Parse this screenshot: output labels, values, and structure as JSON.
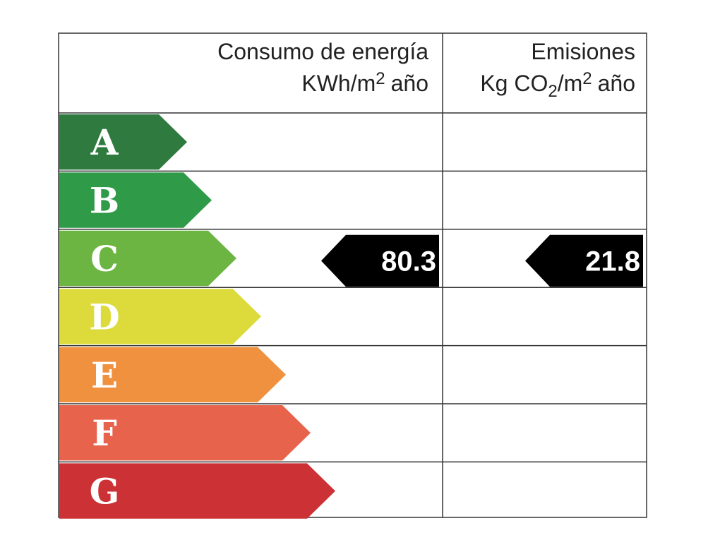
{
  "header": {
    "consumption": {
      "title": "Consumo de energía",
      "unit": "KWh/m",
      "unit_sup": "2",
      "unit_end": "año"
    },
    "emissions": {
      "title": "Emisiones",
      "unit": "Kg CO",
      "unit_sub": "2",
      "unit_mid": "/m",
      "unit_sup": "2",
      "unit_end": "año"
    }
  },
  "ratings": [
    {
      "letter": "A",
      "color": "#2e7a3f"
    },
    {
      "letter": "B",
      "color": "#2f9a48"
    },
    {
      "letter": "C",
      "color": "#6cb543",
      "consumption": 80.3,
      "emissions": 21.8
    },
    {
      "letter": "D",
      "color": "#dcdb3b"
    },
    {
      "letter": "E",
      "color": "#f0913f"
    },
    {
      "letter": "F",
      "color": "#e8634b"
    },
    {
      "letter": "G",
      "color": "#cc3235"
    }
  ]
}
